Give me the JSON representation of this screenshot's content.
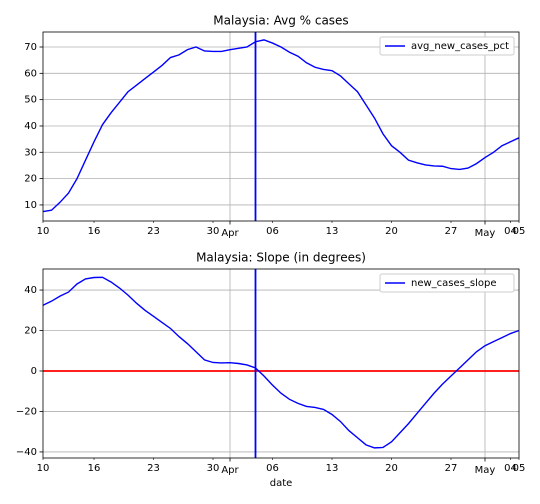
{
  "chart_data": [
    {
      "type": "line",
      "title": "Malaysia: Avg % cases",
      "x": [
        0,
        1,
        2,
        3,
        4,
        5,
        6,
        7,
        8,
        9,
        10,
        11,
        12,
        13,
        14,
        15,
        16,
        17,
        18,
        19,
        20,
        21,
        22,
        23,
        24,
        25,
        26,
        27,
        28,
        29,
        30,
        31,
        32,
        33,
        34,
        35,
        36,
        37,
        38,
        39,
        40,
        41,
        42,
        43,
        44,
        45,
        46,
        47,
        48,
        49,
        50,
        51,
        52,
        53,
        54,
        55,
        56
      ],
      "series": [
        {
          "name": "avg_new_cases_pct",
          "color": "#0000ff",
          "values": [
            7.5,
            8,
            11,
            14.5,
            20,
            27,
            34,
            40.5,
            45,
            49,
            53,
            55.5,
            58,
            60.5,
            63,
            66,
            67,
            69,
            70,
            68.5,
            68.3,
            68.3,
            69,
            69.5,
            70,
            72,
            72.7,
            71.5,
            70,
            68,
            66.5,
            64,
            62.3,
            61.5,
            61,
            59,
            56,
            53,
            48,
            43,
            37,
            32.5,
            30,
            27,
            26,
            25.2,
            24.8,
            24.7,
            23.8,
            23.5,
            24,
            25.7,
            28,
            30,
            32.5,
            34,
            35.5
          ]
        }
      ],
      "xlim": [
        0,
        56
      ],
      "xticks": [
        {
          "value": 22,
          "label": "Apr"
        },
        {
          "value": 52,
          "label": "May"
        }
      ],
      "xminorticks": [
        {
          "value": 0,
          "label": "10"
        },
        {
          "value": 6,
          "label": "16"
        },
        {
          "value": 13,
          "label": "23"
        },
        {
          "value": 20,
          "label": "30"
        },
        {
          "value": 27,
          "label": "06"
        },
        {
          "value": 34,
          "label": "13"
        },
        {
          "value": 41,
          "label": "20"
        },
        {
          "value": 48,
          "label": "27"
        },
        {
          "value": 55,
          "label": "04"
        },
        {
          "value": 56,
          "label": "05"
        }
      ],
      "ylim": [
        3.9,
        75.7
      ],
      "yticks": [
        10,
        20,
        30,
        40,
        50,
        60,
        70
      ],
      "vline": {
        "value": 25,
        "color": "#0000ff"
      },
      "grid": true,
      "legend": "upper right"
    },
    {
      "type": "line",
      "title": "Malaysia: Slope (in degrees)",
      "xlabel": "date",
      "x": [
        0,
        1,
        2,
        3,
        4,
        5,
        6,
        7,
        8,
        9,
        10,
        11,
        12,
        13,
        14,
        15,
        16,
        17,
        18,
        19,
        20,
        21,
        22,
        23,
        24,
        25,
        26,
        27,
        28,
        29,
        30,
        31,
        32,
        33,
        34,
        35,
        36,
        37,
        38,
        39,
        40,
        41,
        42,
        43,
        44,
        45,
        46,
        47,
        48,
        49,
        50,
        51,
        52,
        53,
        54,
        55,
        56
      ],
      "series": [
        {
          "name": "new_cases_slope",
          "color": "#0000ff",
          "values": [
            32.5,
            34.5,
            37,
            39,
            43,
            45.5,
            46.2,
            46.3,
            44,
            41,
            37.5,
            33.5,
            30,
            27,
            24,
            21,
            17,
            13.5,
            9.5,
            5.5,
            4.2,
            4,
            4.1,
            3.7,
            3,
            1.5,
            -2.5,
            -7,
            -11,
            -14,
            -16,
            -17.5,
            -18,
            -19,
            -21.5,
            -25,
            -29.5,
            -33,
            -36.5,
            -38,
            -37.8,
            -35,
            -30.5,
            -26,
            -21,
            -16,
            -11,
            -6.5,
            -2.5,
            1.5,
            5.5,
            9.5,
            12.5,
            14.5,
            16.5,
            18.5,
            20
          ]
        }
      ],
      "xlim": [
        0,
        56
      ],
      "xticks": [
        {
          "value": 22,
          "label": "Apr"
        },
        {
          "value": 52,
          "label": "May"
        }
      ],
      "xminorticks": [
        {
          "value": 0,
          "label": "10"
        },
        {
          "value": 6,
          "label": "16"
        },
        {
          "value": 13,
          "label": "23"
        },
        {
          "value": 20,
          "label": "30"
        },
        {
          "value": 27,
          "label": "06"
        },
        {
          "value": 34,
          "label": "13"
        },
        {
          "value": 41,
          "label": "20"
        },
        {
          "value": 48,
          "label": "27"
        },
        {
          "value": 55,
          "label": "04"
        },
        {
          "value": 56,
          "label": "05"
        }
      ],
      "ylim": [
        -43,
        50.4
      ],
      "yticks": [
        {
          "value": -40,
          "label": "−40"
        },
        {
          "value": -20,
          "label": "−20"
        },
        0,
        20,
        40
      ],
      "vline": {
        "value": 25,
        "color": "#0000ff"
      },
      "hline": {
        "value": 0,
        "color": "#ff0000"
      },
      "grid": true,
      "legend": "upper right"
    }
  ]
}
